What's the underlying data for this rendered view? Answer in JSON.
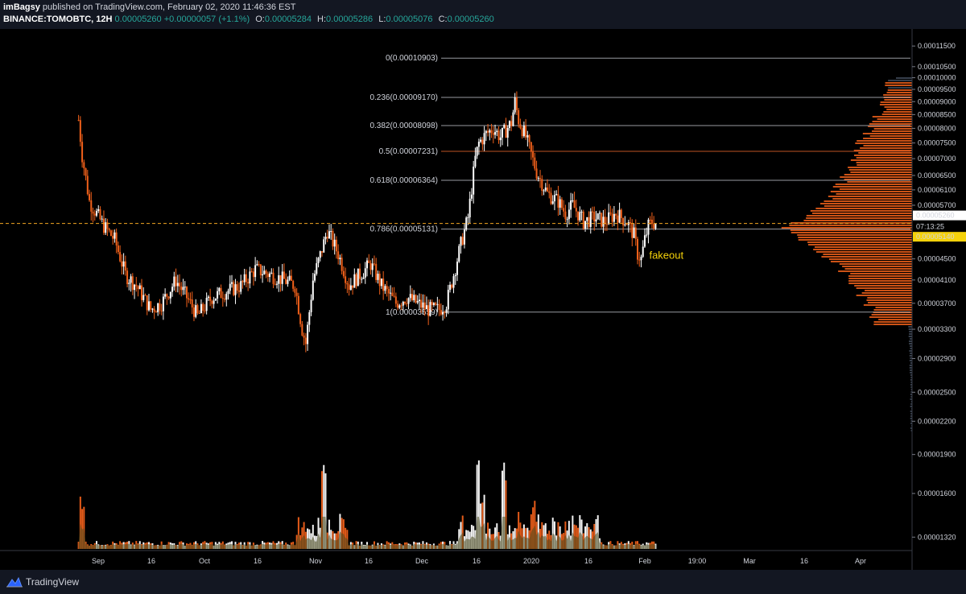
{
  "header": {
    "publisher": "imBagsy",
    "published_text": "published on TradingView.com, February 02, 2020 11:46:36 EST",
    "symbol": "BINANCE:TOMOBTC, 12H",
    "last": "0.00005260",
    "change": "+0.00000057 (+1.1%)",
    "o_label": "O:",
    "o_value": "0.00005284",
    "h_label": "H:",
    "h_value": "0.00005286",
    "l_label": "L:",
    "l_value": "0.00005076",
    "c_label": "C:",
    "c_value": "0.00005260"
  },
  "footer": {
    "brand": "TradingView",
    "logo_icon": "tradingview-logo-icon"
  },
  "colors": {
    "background": "#000000",
    "up": "#ffffff",
    "down": "#f0601a",
    "fib_line": "#b2b5be",
    "fib_mid": "#e0622a",
    "price_tag": "#ffffff",
    "current_tag": "#f5d20a",
    "profile": "#3c4654",
    "profile_hot": "#f0601a",
    "volume_ma": "#4a4a1e",
    "annotation": "#f5d20a"
  },
  "chart_data": {
    "type": "candlestick",
    "title": "",
    "interval": "12H",
    "x_ticks": [
      "Sep",
      "16",
      "Oct",
      "16",
      "Nov",
      "16",
      "Dec",
      "16",
      "2020",
      "16",
      "Feb",
      "19:00",
      "Mar",
      "16",
      "Apr"
    ],
    "y_ticks": [
      "0.00011500",
      "0.00010500",
      "0.00010000",
      "0.00009500",
      "0.00009000",
      "0.00008500",
      "0.00008000",
      "0.00007500",
      "0.00007000",
      "0.00006500",
      "0.00006100",
      "0.00005700",
      "0.00004500",
      "0.00004100",
      "0.00003700",
      "0.00003300",
      "0.00002900",
      "0.00002500",
      "0.00002200",
      "0.00001900",
      "0.00001600",
      "0.00001320"
    ],
    "y_scale": "log",
    "ylim": [
      1.28e-05,
      0.0001205
    ],
    "price_labels": {
      "last": "0.00005260",
      "countdown": "07:13:25",
      "current": "0.00005140",
      "last_value": 5.26e-05,
      "current_value": 5.14e-05
    },
    "fib_levels": [
      {
        "label": "0(0.00010903)",
        "value": 0.00010903
      },
      {
        "label": "0.236(0.00009170)",
        "value": 9.17e-05
      },
      {
        "label": "0.382(0.00008098)",
        "value": 8.098e-05
      },
      {
        "label": "0.5(0.00007231)",
        "value": 7.231e-05,
        "highlight": true
      },
      {
        "label": "0.618(0.00006364)",
        "value": 6.364e-05
      },
      {
        "label": "0.786(0.00005131)",
        "value": 5.131e-05
      },
      {
        "label": "1(0.00003559)",
        "value": 3.559e-05
      }
    ],
    "annotation": {
      "text": "fakeout",
      "date": "2020-01-29",
      "value": 4.57e-05
    },
    "anchors": [
      [
        "2019-08-26",
        8.3e-05
      ],
      [
        "2019-08-27",
        7.1e-05
      ],
      [
        "2019-08-29",
        5.8e-05
      ],
      [
        "2019-09-02",
        5.2e-05
      ],
      [
        "2019-09-05",
        4.9e-05
      ],
      [
        "2019-09-08",
        4.2e-05
      ],
      [
        "2019-09-11",
        4e-05
      ],
      [
        "2019-09-15",
        3.6e-05
      ],
      [
        "2019-09-18",
        3.7e-05
      ],
      [
        "2019-09-22",
        4.1e-05
      ],
      [
        "2019-09-25",
        3.8e-05
      ],
      [
        "2019-09-28",
        3.5e-05
      ],
      [
        "2019-10-02",
        3.8e-05
      ],
      [
        "2019-10-06",
        3.9e-05
      ],
      [
        "2019-10-10",
        4e-05
      ],
      [
        "2019-10-14",
        4.3e-05
      ],
      [
        "2019-10-18",
        4.2e-05
      ],
      [
        "2019-10-22",
        4.1e-05
      ],
      [
        "2019-10-25",
        4e-05
      ],
      [
        "2019-10-27",
        3.3e-05
      ],
      [
        "2019-10-28",
        3.1e-05
      ],
      [
        "2019-10-30",
        4.1e-05
      ],
      [
        "2019-11-03",
        5.1e-05
      ],
      [
        "2019-11-06",
        4.6e-05
      ],
      [
        "2019-11-09",
        4e-05
      ],
      [
        "2019-11-12",
        4.2e-05
      ],
      [
        "2019-11-15",
        4.4e-05
      ],
      [
        "2019-11-18",
        4e-05
      ],
      [
        "2019-11-22",
        3.7e-05
      ],
      [
        "2019-11-25",
        3.8e-05
      ],
      [
        "2019-11-28",
        3.7e-05
      ],
      [
        "2019-12-01",
        3.6e-05
      ],
      [
        "2019-12-04",
        3.6e-05
      ],
      [
        "2019-12-06",
        3.7e-05
      ],
      [
        "2019-12-08",
        4.2e-05
      ],
      [
        "2019-12-10",
        4.8e-05
      ],
      [
        "2019-12-12",
        5.4e-05
      ],
      [
        "2019-12-14",
        7e-05
      ],
      [
        "2019-12-15",
        7.5e-05
      ],
      [
        "2019-12-17",
        7.8e-05
      ],
      [
        "2019-12-19",
        8e-05
      ],
      [
        "2019-12-21",
        7.7e-05
      ],
      [
        "2019-12-24",
        8.2e-05
      ],
      [
        "2019-12-25",
        9e-05
      ],
      [
        "2019-12-26",
        8.3e-05
      ],
      [
        "2019-12-28",
        7.7e-05
      ],
      [
        "2019-12-31",
        6.6e-05
      ],
      [
        "2020-01-03",
        6e-05
      ],
      [
        "2020-01-06",
        5.8e-05
      ],
      [
        "2020-01-08",
        5.5e-05
      ],
      [
        "2020-01-10",
        5.7e-05
      ],
      [
        "2020-01-13",
        5.3e-05
      ],
      [
        "2020-01-16",
        5.4e-05
      ],
      [
        "2020-01-19",
        5.3e-05
      ],
      [
        "2020-01-22",
        5.5e-05
      ],
      [
        "2020-01-25",
        5.3e-05
      ],
      [
        "2020-01-27",
        5e-05
      ],
      [
        "2020-01-28",
        4.6e-05
      ],
      [
        "2020-01-29",
        4.5e-05
      ],
      [
        "2020-01-30",
        4.9e-05
      ],
      [
        "2020-01-31",
        5.2e-05
      ],
      [
        "2020-02-01",
        5.3e-05
      ],
      [
        "2020-02-02",
        5.26e-05
      ]
    ]
  }
}
